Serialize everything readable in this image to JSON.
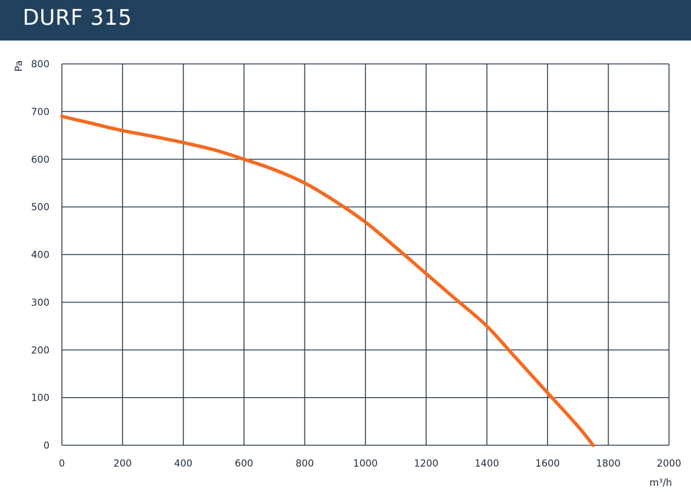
{
  "header": {
    "title": "DURF 315",
    "background": "#22415f"
  },
  "chart_data": {
    "type": "line",
    "title": "DURF 315",
    "xlabel": "m³/h",
    "ylabel": "Pa",
    "xlim": [
      0,
      2000
    ],
    "ylim": [
      0,
      800
    ],
    "xticks": [
      "0",
      "200",
      "400",
      "600",
      "800",
      "1000",
      "1200",
      "1400",
      "1600",
      "1800",
      "2000"
    ],
    "yticks": [
      "0",
      "100",
      "200",
      "300",
      "400",
      "500",
      "600",
      "700",
      "800"
    ],
    "grid": true,
    "line_color": "#f26b21",
    "grid_color": "#1f3447",
    "series": [
      {
        "x": [
          0,
          100,
          200,
          300,
          400,
          500,
          600,
          700,
          800,
          900,
          1000,
          1100,
          1200,
          1300,
          1400,
          1500,
          1600,
          1700,
          1750
        ],
        "values": [
          690,
          675,
          660,
          648,
          635,
          620,
          600,
          578,
          550,
          512,
          468,
          415,
          360,
          305,
          250,
          180,
          110,
          40,
          0
        ]
      }
    ]
  }
}
